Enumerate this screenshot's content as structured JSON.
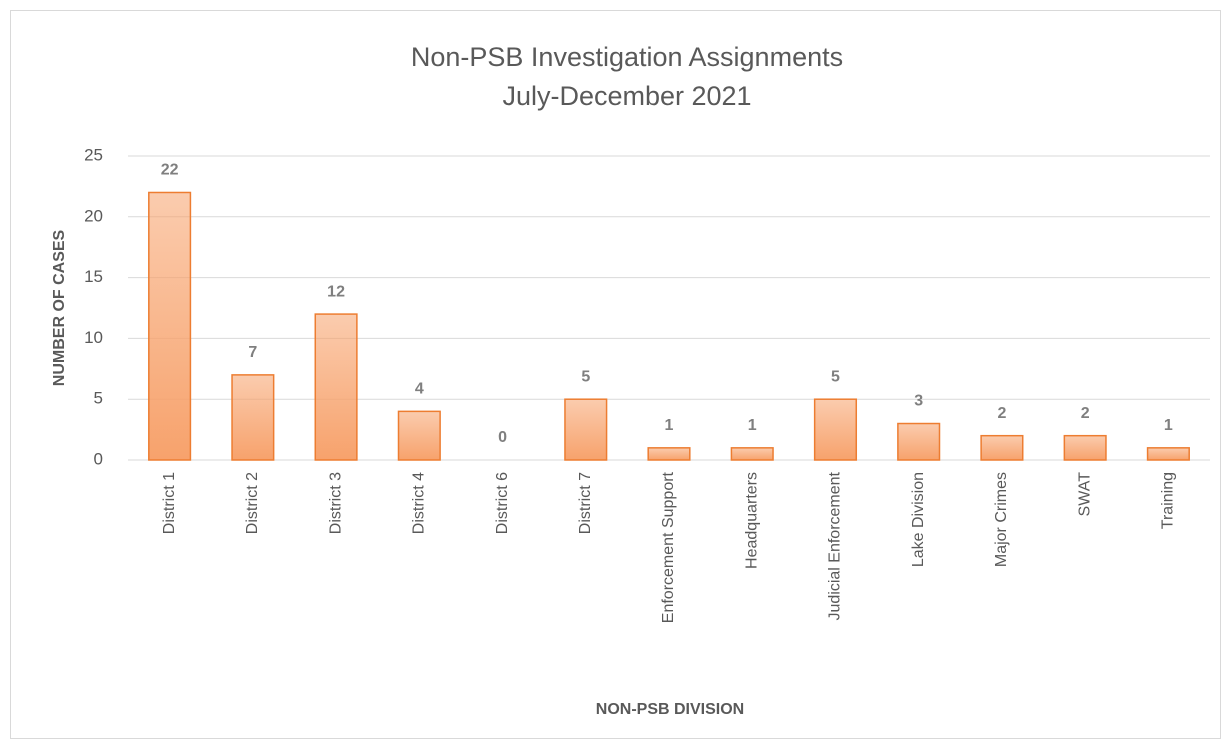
{
  "chart_data": {
    "type": "bar",
    "title": "Non-PSB Investigation Assignments",
    "subtitle": "July-December 2021",
    "x_label": "NON-PSB DIVISION",
    "y_label": "NUMBER OF CASES",
    "categories": [
      "District 1",
      "District 2",
      "District 3",
      "District 4",
      "District 6",
      "District 7",
      "Enforcement Support",
      "Headquarters",
      "Judicial Enforcement",
      "Lake Division",
      "Major Crimes",
      "SWAT",
      "Training"
    ],
    "values": [
      22,
      7,
      12,
      4,
      0,
      5,
      1,
      1,
      5,
      3,
      2,
      2,
      1
    ],
    "color": "#f7a26c",
    "edge_color": "#ed7d31",
    "ylim": [
      0,
      25
    ],
    "yticks": [
      0,
      5,
      10,
      15,
      20,
      25
    ],
    "grid": true
  }
}
